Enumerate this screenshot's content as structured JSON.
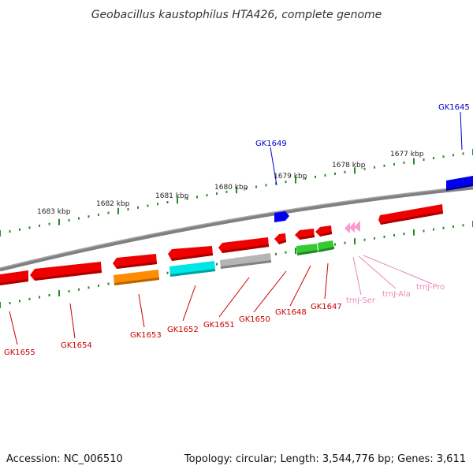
{
  "title": "Geobacillus kaustophilus HTA426, complete genome",
  "footer": {
    "accession": "Accession: NC_006510",
    "topology": "Topology: circular; Length: 3,544,776 bp; Genes: 3,611"
  },
  "scale_labels": [
    "1683 kbp",
    "1682 kbp",
    "1681 kbp",
    "1680 kbp",
    "1679 kbp",
    "1678 kbp",
    "1677 kbp"
  ],
  "gene_labels": {
    "GK1645": "GK1645",
    "GK1649": "GK1649",
    "GK1655": "GK1655",
    "GK1654": "GK1654",
    "GK1653": "GK1653",
    "GK1652": "GK1652",
    "GK1651": "GK1651",
    "GK1650": "GK1650",
    "GK1648": "GK1648",
    "GK1647": "GK1647",
    "trnJ_Ser": "trnJ-Ser",
    "trnJ_Ala": "trnJ-Ala",
    "trnJ_Pro": "trnJ-Pro"
  },
  "colors": {
    "backbone": "#808080",
    "scale": "#2a8a2a",
    "forward_label": "#0000cc",
    "reverse_label": "#cc0000",
    "trna_label": "#e68ab8",
    "gene_red": "#ee0000",
    "gene_blue": "#0000ee",
    "gene_orange": "#ff8c00",
    "gene_cyan": "#00e5e5",
    "gene_gray": "#b5b5b5",
    "gene_green": "#33cc33",
    "gene_pink": "#ff99cc"
  }
}
